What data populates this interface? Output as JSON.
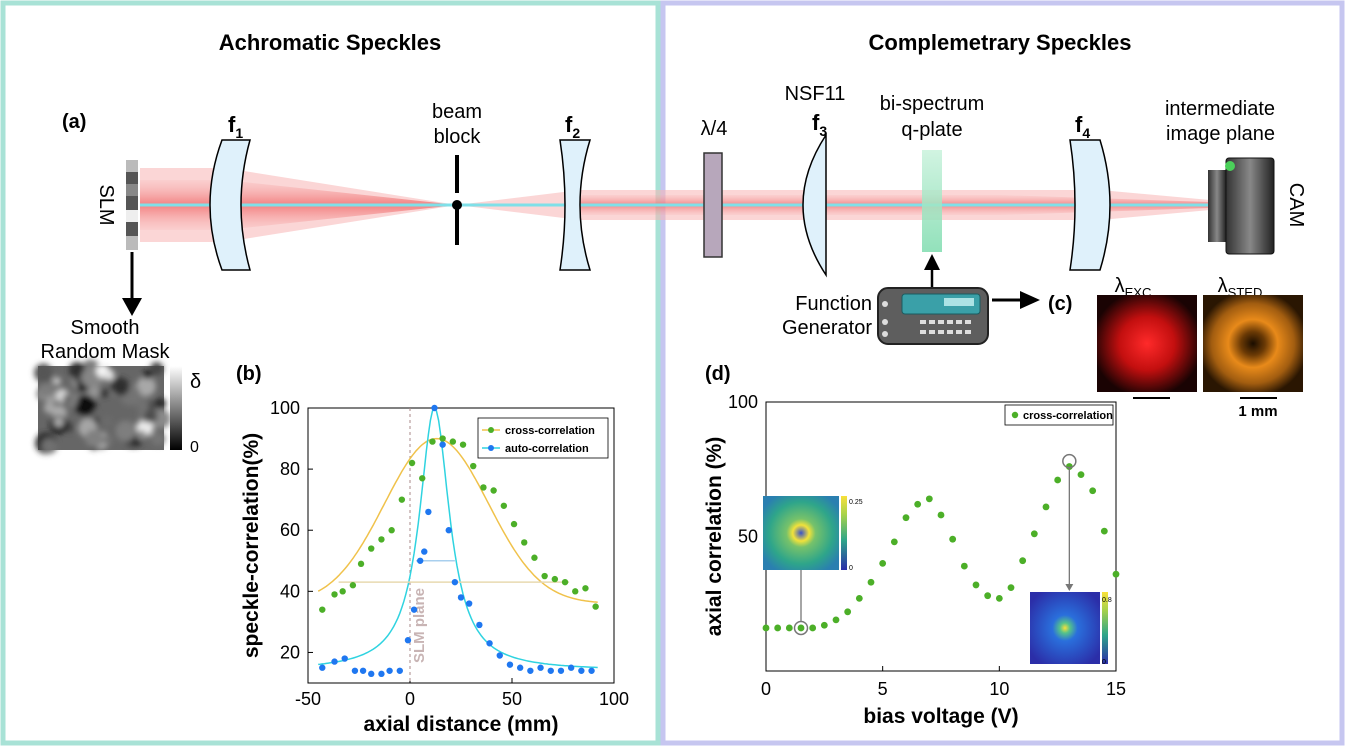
{
  "panels": {
    "left_title": "Achromatic Speckles",
    "right_title": "Complemetrary Speckles"
  },
  "labels": {
    "a": "(a)",
    "b": "(b)",
    "c": "(c)",
    "d": "(d)",
    "slm": "SLM",
    "f1": "f",
    "f1_sub": "1",
    "f2": "f",
    "f2_sub": "2",
    "f3": "f",
    "f3_sub": "3",
    "f4": "f",
    "f4_sub": "4",
    "beam_block_1": "beam",
    "beam_block_2": "block",
    "quarter_wave": "λ/4",
    "nsf11": "NSF11",
    "qplate_1": "bi-spectrum",
    "qplate_2": "q-plate",
    "iip_1": "intermediate",
    "iip_2": "image plane",
    "cam": "CAM",
    "fg_1": "Function",
    "fg_2": "Generator",
    "mask_1": "Smooth",
    "mask_2": "Random Mask",
    "delta": "δ",
    "zero": "0",
    "lambda_exc": "λ",
    "lambda_exc_sub": "EXC",
    "lambda_sted": "λ",
    "lambda_sted_sub": "STED",
    "scale": "1 mm"
  },
  "chart_data": [
    {
      "type": "scatter",
      "xlabel": "axial distance (mm)",
      "ylabel": "speckle-correlation(%)",
      "xlim": [
        -50,
        100
      ],
      "ylim": [
        10,
        100
      ],
      "xticks": [
        "-50",
        "0",
        "50",
        "100"
      ],
      "yticks": [
        "20",
        "40",
        "60",
        "80",
        "100"
      ],
      "annotation": "SLM plane",
      "legend": "top-right",
      "series": [
        {
          "name": "cross-correlation",
          "color": "#4caf28",
          "x": [
            -43,
            -37,
            -33,
            -28,
            -24,
            -19,
            -14,
            -9,
            -4,
            1,
            6,
            11,
            16,
            21,
            26,
            31,
            36,
            41,
            46,
            51,
            56,
            61,
            66,
            71,
            76,
            81,
            86,
            91
          ],
          "y": [
            34,
            39,
            40,
            42,
            49,
            54,
            57,
            60,
            70,
            82,
            77,
            89,
            90,
            89,
            88,
            81,
            74,
            73,
            68,
            62,
            56,
            51,
            45,
            44,
            43,
            40,
            41,
            35
          ]
        },
        {
          "name": "auto-correlation",
          "color": "#1f77f0",
          "x": [
            -43,
            -37,
            -32,
            -27,
            -23,
            -19,
            -14,
            -10,
            -5,
            -1,
            2,
            5,
            7,
            9,
            12,
            16,
            19,
            22,
            25,
            29,
            34,
            39,
            44,
            49,
            54,
            59,
            64,
            69,
            74,
            79,
            84,
            89
          ],
          "y": [
            15,
            17,
            18,
            14,
            14,
            13,
            13,
            14,
            14,
            24,
            34,
            50,
            53,
            66,
            100,
            88,
            60,
            43,
            38,
            36,
            29,
            23,
            19,
            16,
            15,
            14,
            15,
            14,
            14,
            15,
            14,
            14
          ]
        }
      ],
      "fits": [
        {
          "name": "cross-correlation",
          "color": "#f0c24b"
        },
        {
          "name": "auto-correlation",
          "color": "#2fd3e0"
        }
      ]
    },
    {
      "type": "scatter",
      "xlabel": "bias voltage (V)",
      "ylabel": "axial correlation (%)",
      "xlim": [
        0,
        15
      ],
      "ylim": [
        0,
        100
      ],
      "xticks": [
        "0",
        "5",
        "10",
        "15"
      ],
      "yticks": [
        "50",
        "100"
      ],
      "legend": "top-right",
      "series": [
        {
          "name": "cross-correlation",
          "color": "#4caf28",
          "x": [
            0,
            0.5,
            1.0,
            1.5,
            2.0,
            2.5,
            3.0,
            3.5,
            4.0,
            4.5,
            5.0,
            5.5,
            6.0,
            6.5,
            7.0,
            7.5,
            8.0,
            8.5,
            9.0,
            9.5,
            10.0,
            10.5,
            11.0,
            11.5,
            12.0,
            12.5,
            13.0,
            13.5,
            14.0,
            14.5,
            15.0
          ],
          "y": [
            16,
            16,
            16,
            16,
            16,
            17,
            19,
            22,
            27,
            33,
            40,
            48,
            57,
            62,
            64,
            58,
            49,
            39,
            32,
            28,
            27,
            31,
            41,
            51,
            61,
            71,
            76,
            73,
            67,
            52,
            36
          ]
        }
      ],
      "insets": [
        {
          "colorbar_max": "0.25",
          "colorbar_min": "0"
        },
        {
          "colorbar_max": "0.8",
          "colorbar_min": "0"
        }
      ]
    }
  ]
}
